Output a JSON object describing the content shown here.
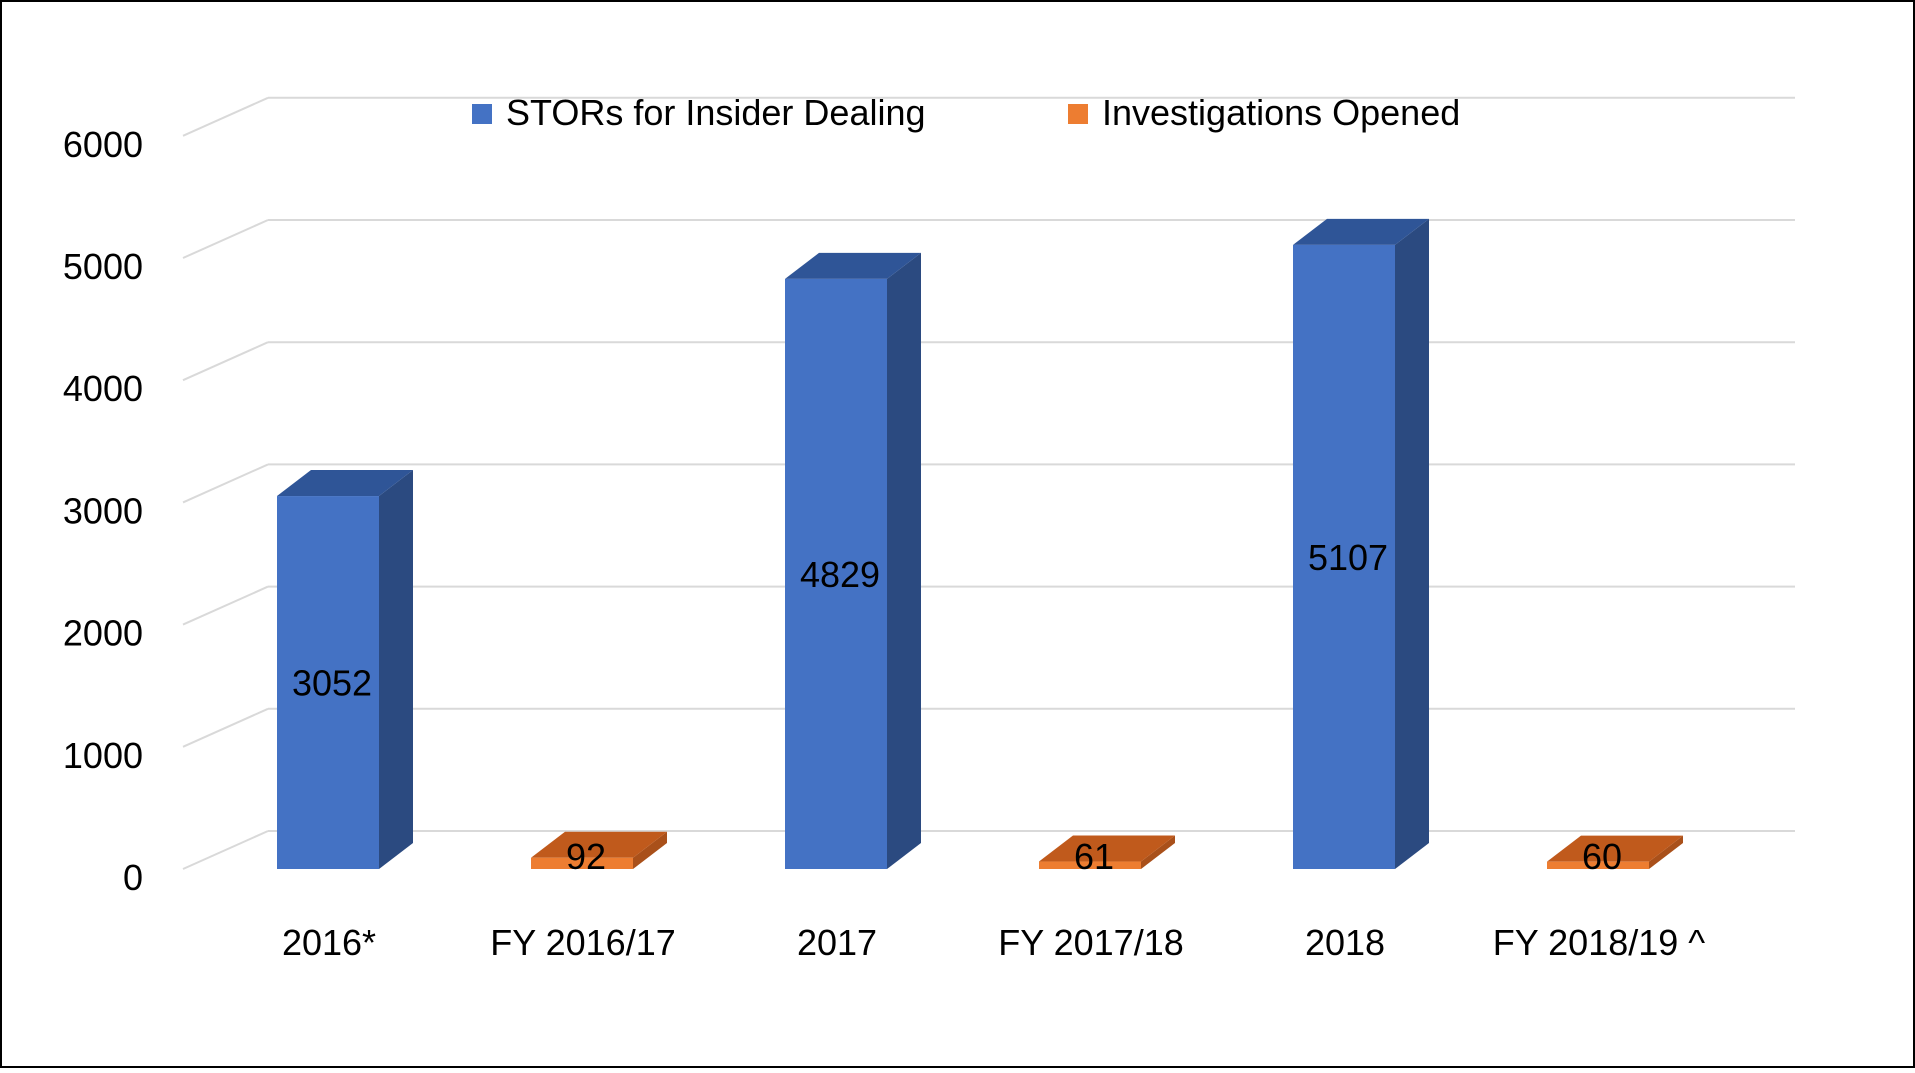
{
  "chart_data": {
    "type": "bar",
    "style": "3d-column",
    "categories": [
      "2016*",
      "FY 2016/17",
      "2017",
      "FY 2017/18",
      "2018",
      "FY 2018/19 ^"
    ],
    "series": [
      {
        "name": "STORs for Insider Dealing",
        "color": "#4472C4",
        "top_color": "#2F5597",
        "side_color": "#2B4A80",
        "values": [
          3052,
          null,
          4829,
          null,
          5107,
          null
        ]
      },
      {
        "name": "Investigations Opened",
        "color": "#ED7D31",
        "top_color": "#C05A1C",
        "side_color": "#A9501A",
        "values": [
          null,
          92,
          null,
          61,
          null,
          60
        ]
      }
    ],
    "data_labels": [
      "3052",
      "92",
      "4829",
      "61",
      "5107",
      "60"
    ],
    "yticks": [
      0,
      1000,
      2000,
      3000,
      4000,
      5000,
      6000
    ],
    "ylim": [
      0,
      6000
    ],
    "title": "",
    "xlabel": "",
    "ylabel": "",
    "grid": true,
    "legend_position": "top"
  }
}
